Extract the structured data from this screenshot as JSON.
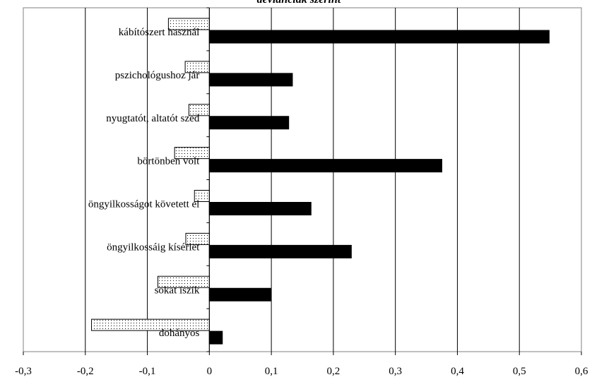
{
  "chart_data": {
    "type": "bar",
    "orientation": "horizontal",
    "title": "deviánciák szerint",
    "categories": [
      "kábítószert használ",
      "pszichológushoz jár",
      "nyugtatót, altatót szed",
      "börtönben volt",
      "öngyilkosságot követett el",
      "öngyilkossáig kísérlet",
      "sokat iszik",
      "dohányos"
    ],
    "series": [
      {
        "values": [
          -0.066,
          -0.039,
          -0.033,
          -0.056,
          -0.024,
          -0.038,
          -0.083,
          -0.19
        ],
        "color": "#ffffff",
        "pattern": "dotted"
      },
      {
        "values": [
          0.548,
          0.134,
          0.128,
          0.375,
          0.164,
          0.229,
          0.099,
          0.021
        ],
        "color": "#000000",
        "pattern": "solid"
      }
    ],
    "xlim": [
      -0.3,
      0.6
    ],
    "xticks": [
      "-0,3",
      "-0,2",
      "-0,1",
      "0",
      "0,1",
      "0,2",
      "0,3",
      "0,4",
      "0,5",
      "0,6"
    ],
    "grid": "vertical",
    "legend": "none"
  }
}
